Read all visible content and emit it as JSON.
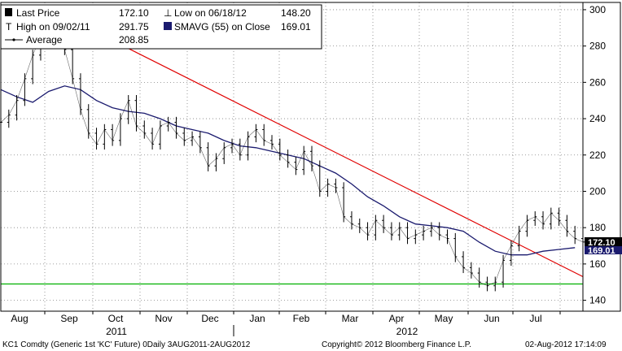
{
  "legend": {
    "last_price_label": "Last Price",
    "last_price_value": "172.10",
    "low_label": "Low on 06/18/12",
    "low_value": "148.20",
    "high_label": "High on 09/02/11",
    "high_value": "291.75",
    "smavg_label": "SMAVG (55) on Close",
    "smavg_value": "169.01",
    "average_label": "Average",
    "average_value": "208.85"
  },
  "price_tags": {
    "last": "172.10",
    "smavg": "169.01"
  },
  "footer": {
    "left": "KC1 Comdty (Generic 1st 'KC' Future) 0Daily 3AUG2011-2AUG2012",
    "center": "Copyright© 2012 Bloomberg Finance L.P.",
    "right": "02-Aug-2012 17:14:09"
  },
  "colors": {
    "price": "#000000",
    "smavg": "#1a1a6e",
    "trendline": "#e00000",
    "support": "#00b000"
  },
  "chart_data": {
    "type": "line",
    "x_months": [
      "Aug",
      "Sep",
      "Oct",
      "Nov",
      "Dec",
      "Jan",
      "Feb",
      "Mar",
      "Apr",
      "May",
      "Jun",
      "Jul"
    ],
    "year_labels": [
      "2011",
      "2012"
    ],
    "y_ticks": [
      140,
      160,
      180,
      200,
      220,
      240,
      260,
      280,
      300
    ],
    "ylim": [
      134,
      304
    ],
    "grid": true,
    "y_axis_position": "right",
    "x_range_days": [
      0,
      365
    ],
    "series": [
      {
        "role": "price",
        "x": [
          0,
          5,
          10,
          15,
          20,
          25,
          30,
          35,
          40,
          45,
          50,
          55,
          60,
          65,
          70,
          75,
          80,
          85,
          90,
          95,
          100,
          105,
          110,
          115,
          120,
          125,
          130,
          135,
          140,
          145,
          150,
          155,
          160,
          165,
          170,
          175,
          180,
          185,
          190,
          195,
          200,
          205,
          210,
          215,
          220,
          225,
          230,
          235,
          240,
          245,
          250,
          255,
          260,
          265,
          270,
          275,
          280,
          285,
          290,
          295,
          300,
          305,
          310,
          315,
          320,
          325,
          330,
          335,
          340,
          345,
          350,
          355,
          360,
          365
        ],
        "y": [
          238,
          242,
          250,
          262,
          275,
          285,
          290,
          288,
          278,
          262,
          245,
          232,
          226,
          234,
          228,
          240,
          250,
          236,
          232,
          226,
          236,
          238,
          232,
          228,
          230,
          224,
          214,
          218,
          224,
          226,
          220,
          230,
          234,
          228,
          226,
          220,
          216,
          212,
          222,
          214,
          200,
          204,
          202,
          186,
          182,
          180,
          176,
          184,
          180,
          176,
          180,
          174,
          176,
          178,
          180,
          176,
          174,
          164,
          158,
          155,
          150,
          148,
          150,
          162,
          170,
          178,
          184,
          186,
          182,
          188,
          184,
          178,
          174,
          172.1
        ]
      },
      {
        "role": "smavg",
        "x": [
          0,
          10,
          20,
          30,
          40,
          50,
          60,
          70,
          80,
          90,
          100,
          110,
          120,
          130,
          140,
          150,
          160,
          170,
          180,
          190,
          200,
          210,
          220,
          230,
          240,
          250,
          260,
          270,
          280,
          290,
          300,
          310,
          320,
          330,
          340,
          350,
          360
        ],
        "y": [
          256,
          252,
          249,
          255,
          258,
          256,
          250,
          246,
          244,
          243,
          240,
          236,
          234,
          232,
          228,
          225,
          224,
          222,
          220,
          218,
          214,
          210,
          204,
          197,
          192,
          186,
          182,
          181,
          180,
          178,
          172,
          167,
          165,
          165,
          167,
          168,
          169
        ]
      },
      {
        "role": "trendline",
        "x": [
          52,
          365
        ],
        "y": [
          291,
          153
        ]
      },
      {
        "role": "support",
        "x": [
          0,
          365
        ],
        "y": [
          149,
          149
        ]
      }
    ]
  }
}
